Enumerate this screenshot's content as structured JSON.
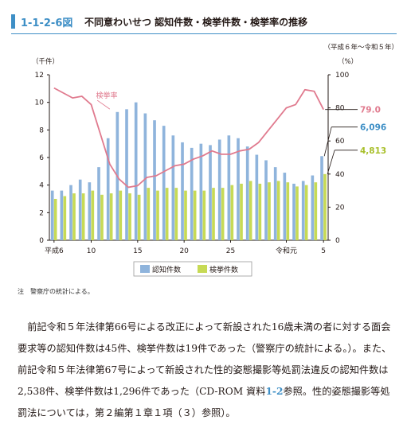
{
  "figure": {
    "number": "1-1-2-6図",
    "title": "不同意わいせつ 認知件数・検挙件数・検挙率の推移"
  },
  "note": "注　警察庁の統計による。",
  "body": {
    "line1": "前記令和５年法律第66号による改正によって新設された16歳未満の者に対する面会要求等の認知件数は45件、検挙件数は19件であった（警察庁の統計による。）。また、前記令和５年法律第67号によって新設された性的姿態撮影等処罰法違反の認知件数は2,538件、検挙件数は1,296件であった（CD-ROM 資料",
    "ref": "1-2",
    "line2": "参照。性的姿態撮影等処罰法については，第２編第１章１項（３）参照）。"
  },
  "chart_data": {
    "type": "bar+line",
    "period_label": "（平成６年～令和５年）",
    "left_axis": {
      "unit": "（千件）",
      "ylim": [
        0,
        12
      ],
      "ticks": [
        "0",
        "2",
        "4",
        "6",
        "8",
        "10",
        "12"
      ]
    },
    "right_axis": {
      "unit": "（%）",
      "ylim": [
        0,
        100
      ],
      "ticks": [
        "0",
        "20",
        "40",
        "60",
        "80",
        "100"
      ]
    },
    "x_tick_labels": [
      "平成6",
      "10",
      "15",
      "20",
      "25",
      "令和元",
      "5"
    ],
    "x_tick_index": [
      0,
      4,
      9,
      14,
      19,
      25,
      29
    ],
    "categories": [
      "H6",
      "H7",
      "H8",
      "H9",
      "H10",
      "H11",
      "H12",
      "H13",
      "H14",
      "H15",
      "H16",
      "H17",
      "H18",
      "H19",
      "H20",
      "H21",
      "H22",
      "H23",
      "H24",
      "H25",
      "H26",
      "H27",
      "H28",
      "H29",
      "H30",
      "R1",
      "R2",
      "R3",
      "R4",
      "R5"
    ],
    "series": [
      {
        "name": "認知件数",
        "axis": "left",
        "kind": "bar",
        "color": "#8fb4dc",
        "values": [
          3.6,
          3.6,
          4.0,
          4.4,
          4.2,
          5.3,
          7.4,
          9.3,
          9.5,
          10.0,
          9.2,
          8.7,
          8.3,
          7.6,
          7.1,
          6.7,
          7.0,
          6.9,
          7.3,
          7.6,
          7.4,
          6.8,
          6.2,
          5.8,
          5.3,
          4.9,
          4.1,
          4.3,
          4.7,
          6.1
        ]
      },
      {
        "name": "検挙件数",
        "axis": "left",
        "kind": "bar",
        "color": "#c7da55",
        "values": [
          3.0,
          3.2,
          3.4,
          3.4,
          3.6,
          3.3,
          3.4,
          3.6,
          3.4,
          3.3,
          3.8,
          3.6,
          3.8,
          3.8,
          3.6,
          3.6,
          3.6,
          3.8,
          3.8,
          4.0,
          4.1,
          4.3,
          4.1,
          4.2,
          4.3,
          4.2,
          3.9,
          4.0,
          4.2,
          4.8
        ]
      },
      {
        "name": "検挙率",
        "axis": "right",
        "kind": "line",
        "color": "#e07a8e",
        "values": [
          92,
          89,
          86,
          87,
          82,
          64,
          46,
          37,
          32,
          33,
          38,
          39,
          42,
          45,
          46,
          49,
          51,
          54,
          52,
          52,
          54,
          55,
          59,
          66,
          73,
          80,
          82,
          91,
          90,
          79.0
        ]
      }
    ],
    "series_labels": [
      "検挙率"
    ],
    "end_labels": [
      {
        "text": "79.0",
        "color": "#e07a8e"
      },
      {
        "text": "6,096",
        "color": "#3e8fc6"
      },
      {
        "text": "4,813",
        "color": "#a8bf2a"
      }
    ]
  }
}
